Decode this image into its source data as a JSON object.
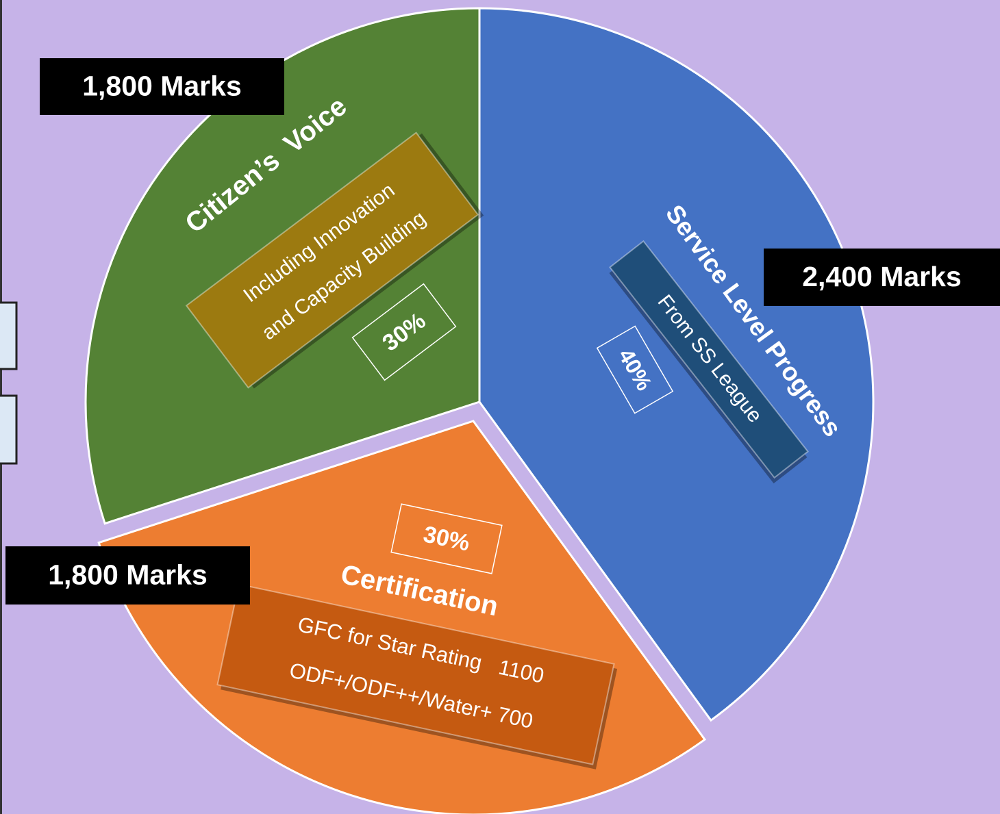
{
  "chart_data": {
    "type": "pie",
    "categories": [
      "Service Level Progress",
      "Certification",
      "Citizen’s  Voice"
    ],
    "values": [
      40,
      30,
      30
    ],
    "value_labels": [
      "40%",
      "30%",
      "30%"
    ],
    "colors": [
      "#4472c4",
      "#ed7d31",
      "#548235"
    ],
    "marks_labels": [
      "2,400 Marks",
      "1,800 Marks",
      "1,800 Marks"
    ],
    "details": [
      [
        "From SS League"
      ],
      [
        "GFC for Star Rating   1100",
        "ODF+/ODF++/Water+ 700"
      ],
      [
        "Including Innovation",
        "and Capacity Building"
      ]
    ]
  }
}
